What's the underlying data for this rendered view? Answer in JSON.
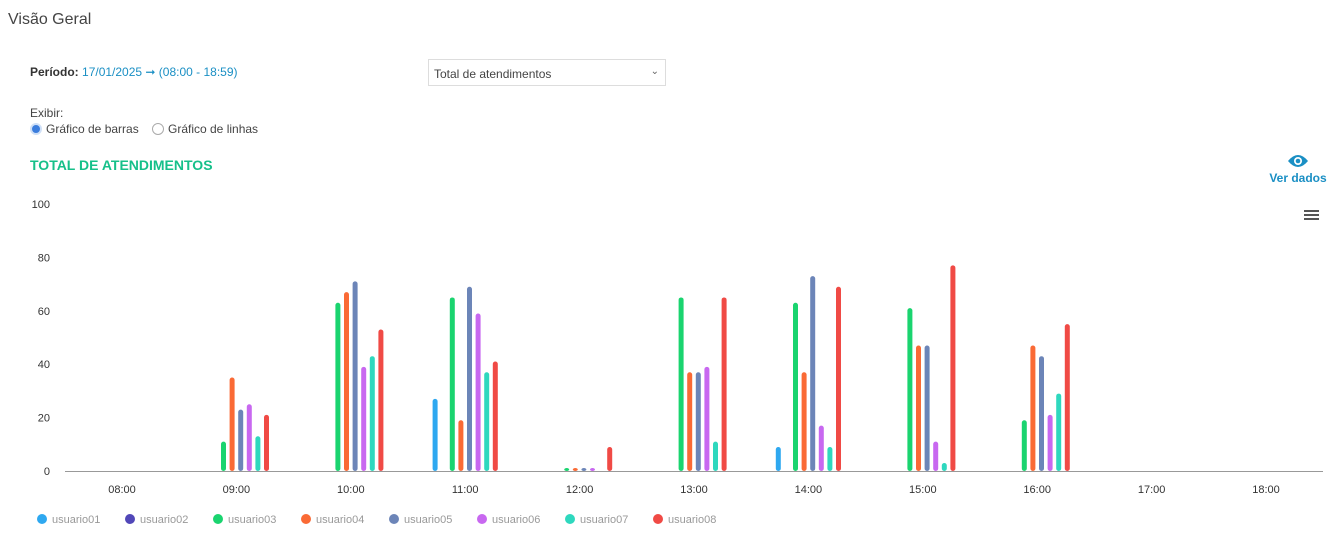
{
  "header": {
    "title": "Visão Geral"
  },
  "period": {
    "label": "Período:",
    "value": "17/01/2025 ➞ (08:00 - 18:59)"
  },
  "metric_select": {
    "value": "Total de atendimentos"
  },
  "display": {
    "label": "Exibir:",
    "options": [
      {
        "label": "Gráfico de barras",
        "checked": true
      },
      {
        "label": "Gráfico de linhas",
        "checked": false
      }
    ]
  },
  "chart_title": "TOTAL DE ATENDIMENTOS",
  "view_data": {
    "label": "Ver dados",
    "icon": "eye-icon"
  },
  "chart_menu": {
    "icon": "hamburger-menu-icon"
  },
  "chart_data": {
    "type": "bar",
    "title": "TOTAL DE ATENDIMENTOS",
    "categories": [
      "08:00",
      "09:00",
      "10:00",
      "11:00",
      "12:00",
      "13:00",
      "14:00",
      "15:00",
      "16:00",
      "17:00",
      "18:00"
    ],
    "ylim": [
      0,
      100
    ],
    "yticks": [
      0,
      20,
      40,
      60,
      80,
      100
    ],
    "grid": false,
    "legend": "bottom-left",
    "series": [
      {
        "name": "usuario01",
        "color": "#2ea8f0",
        "values": [
          0,
          0,
          0,
          27,
          0,
          0,
          9,
          0,
          0,
          0,
          0
        ]
      },
      {
        "name": "usuario02",
        "color": "#5147b8",
        "values": [
          0,
          0,
          0,
          0,
          0,
          0,
          0,
          0,
          0,
          0,
          0
        ]
      },
      {
        "name": "usuario03",
        "color": "#1ad46f",
        "values": [
          0,
          11,
          63,
          65,
          1,
          65,
          63,
          61,
          19,
          0,
          0
        ]
      },
      {
        "name": "usuario04",
        "color": "#fa6a35",
        "values": [
          0,
          35,
          67,
          19,
          1,
          37,
          37,
          47,
          47,
          0,
          0
        ]
      },
      {
        "name": "usuario05",
        "color": "#6c85b8",
        "values": [
          0,
          23,
          71,
          69,
          1,
          37,
          73,
          47,
          43,
          0,
          0
        ]
      },
      {
        "name": "usuario06",
        "color": "#c868f0",
        "values": [
          0,
          25,
          39,
          59,
          1,
          39,
          17,
          11,
          21,
          0,
          0
        ]
      },
      {
        "name": "usuario07",
        "color": "#2ed8be",
        "values": [
          0,
          13,
          43,
          37,
          0,
          11,
          9,
          3,
          29,
          0,
          0
        ]
      },
      {
        "name": "usuario08",
        "color": "#f04a45",
        "values": [
          0,
          21,
          53,
          41,
          9,
          65,
          69,
          77,
          55,
          0,
          0
        ]
      }
    ]
  }
}
